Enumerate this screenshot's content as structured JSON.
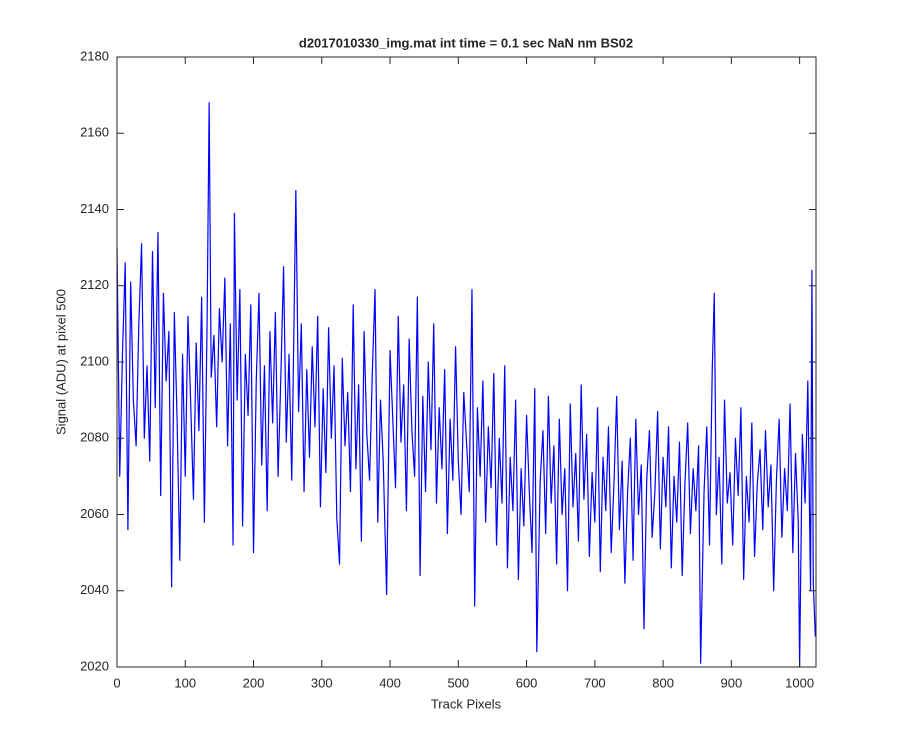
{
  "chart_data": {
    "type": "line",
    "title": "d2017010330_img.mat int time = 0.1 sec  NaN nm BS02",
    "x_label": "Track Pixels",
    "y_label": "Signal (ADU) at pixel 500",
    "color": "#0000ff",
    "xlim": [
      0,
      1024
    ],
    "ylim": [
      2020,
      2180
    ],
    "xticks": [
      0,
      100,
      200,
      300,
      400,
      500,
      600,
      700,
      800,
      900,
      1000
    ],
    "yticks": [
      2020,
      2040,
      2060,
      2080,
      2100,
      2120,
      2140,
      2160,
      2180
    ],
    "grid": false,
    "x": [
      0,
      4,
      8,
      12,
      16,
      20,
      24,
      28,
      32,
      36,
      40,
      44,
      48,
      52,
      56,
      60,
      64,
      68,
      72,
      76,
      80,
      84,
      88,
      92,
      96,
      100,
      104,
      108,
      112,
      116,
      120,
      124,
      128,
      132,
      135,
      138,
      142,
      146,
      150,
      154,
      158,
      162,
      166,
      170,
      172,
      176,
      180,
      184,
      188,
      192,
      196,
      200,
      204,
      208,
      212,
      216,
      220,
      224,
      228,
      232,
      236,
      240,
      244,
      248,
      252,
      256,
      262,
      266,
      270,
      274,
      278,
      282,
      286,
      290,
      294,
      298,
      302,
      306,
      310,
      314,
      318,
      322,
      326,
      330,
      334,
      338,
      342,
      346,
      350,
      354,
      358,
      362,
      366,
      370,
      374,
      378,
      382,
      386,
      390,
      395,
      400,
      404,
      408,
      412,
      416,
      420,
      424,
      428,
      432,
      436,
      440,
      444,
      448,
      452,
      456,
      460,
      464,
      468,
      472,
      476,
      480,
      484,
      488,
      492,
      496,
      500,
      504,
      508,
      512,
      516,
      520,
      524,
      528,
      532,
      536,
      540,
      544,
      548,
      552,
      556,
      560,
      564,
      568,
      572,
      576,
      580,
      584,
      588,
      592,
      596,
      600,
      604,
      608,
      612,
      615,
      620,
      624,
      628,
      632,
      636,
      640,
      644,
      648,
      652,
      656,
      660,
      664,
      668,
      672,
      676,
      680,
      684,
      688,
      692,
      696,
      700,
      704,
      708,
      712,
      716,
      720,
      724,
      728,
      732,
      736,
      740,
      744,
      748,
      752,
      756,
      760,
      764,
      768,
      772,
      776,
      780,
      784,
      788,
      792,
      796,
      800,
      804,
      808,
      812,
      816,
      820,
      824,
      828,
      832,
      836,
      840,
      844,
      848,
      852,
      855,
      860,
      864,
      868,
      872,
      875,
      878,
      882,
      886,
      890,
      894,
      898,
      902,
      906,
      910,
      914,
      918,
      922,
      926,
      930,
      934,
      938,
      942,
      946,
      950,
      954,
      958,
      962,
      966,
      970,
      974,
      978,
      982,
      986,
      990,
      994,
      998,
      1000,
      1004,
      1008,
      1012,
      1016,
      1018,
      1020,
      1023
    ],
    "values": [
      2130,
      2070,
      2102,
      2126,
      2056,
      2121,
      2090,
      2078,
      2110,
      2131,
      2080,
      2099,
      2074,
      2129,
      2088,
      2134,
      2065,
      2118,
      2095,
      2108,
      2041,
      2113,
      2085,
      2048,
      2102,
      2070,
      2112,
      2089,
      2064,
      2105,
      2082,
      2117,
      2058,
      2111,
      2168,
      2096,
      2107,
      2083,
      2114,
      2100,
      2122,
      2078,
      2110,
      2052,
      2139,
      2090,
      2119,
      2057,
      2102,
      2086,
      2115,
      2050,
      2095,
      2118,
      2073,
      2099,
      2061,
      2108,
      2084,
      2113,
      2070,
      2096,
      2125,
      2079,
      2102,
      2069,
      2145,
      2087,
      2110,
      2066,
      2098,
      2075,
      2104,
      2083,
      2112,
      2062,
      2093,
      2071,
      2109,
      2080,
      2099,
      2059,
      2047,
      2101,
      2078,
      2092,
      2066,
      2115,
      2072,
      2094,
      2053,
      2108,
      2081,
      2069,
      2097,
      2119,
      2058,
      2090,
      2074,
      2039,
      2103,
      2085,
      2067,
      2112,
      2079,
      2094,
      2061,
      2106,
      2082,
      2070,
      2117,
      2044,
      2091,
      2066,
      2100,
      2077,
      2110,
      2063,
      2088,
      2072,
      2098,
      2055,
      2085,
      2069,
      2104,
      2074,
      2060,
      2092,
      2079,
      2066,
      2119,
      2036,
      2088,
      2070,
      2095,
      2058,
      2083,
      2067,
      2097,
      2052,
      2080,
      2063,
      2099,
      2046,
      2075,
      2061,
      2090,
      2043,
      2072,
      2057,
      2086,
      2066,
      2050,
      2093,
      2024,
      2069,
      2082,
      2055,
      2091,
      2063,
      2078,
      2047,
      2085,
      2060,
      2072,
      2040,
      2089,
      2062,
      2076,
      2053,
      2094,
      2064,
      2081,
      2049,
      2071,
      2058,
      2088,
      2045,
      2075,
      2061,
      2083,
      2050,
      2068,
      2091,
      2056,
      2074,
      2042,
      2066,
      2080,
      2048,
      2085,
      2060,
      2073,
      2030,
      2069,
      2082,
      2054,
      2066,
      2087,
      2051,
      2075,
      2062,
      2083,
      2046,
      2070,
      2058,
      2079,
      2044,
      2068,
      2084,
      2055,
      2072,
      2061,
      2078,
      2021,
      2066,
      2083,
      2052,
      2098,
      2118,
      2060,
      2075,
      2047,
      2090,
      2063,
      2071,
      2052,
      2080,
      2065,
      2088,
      2043,
      2070,
      2058,
      2084,
      2049,
      2068,
      2077,
      2056,
      2082,
      2062,
      2073,
      2040,
      2069,
      2085,
      2054,
      2072,
      2061,
      2089,
      2050,
      2076,
      2058,
      2020,
      2081,
      2063,
      2095,
      2040,
      2124,
      2042,
      2028
    ]
  }
}
